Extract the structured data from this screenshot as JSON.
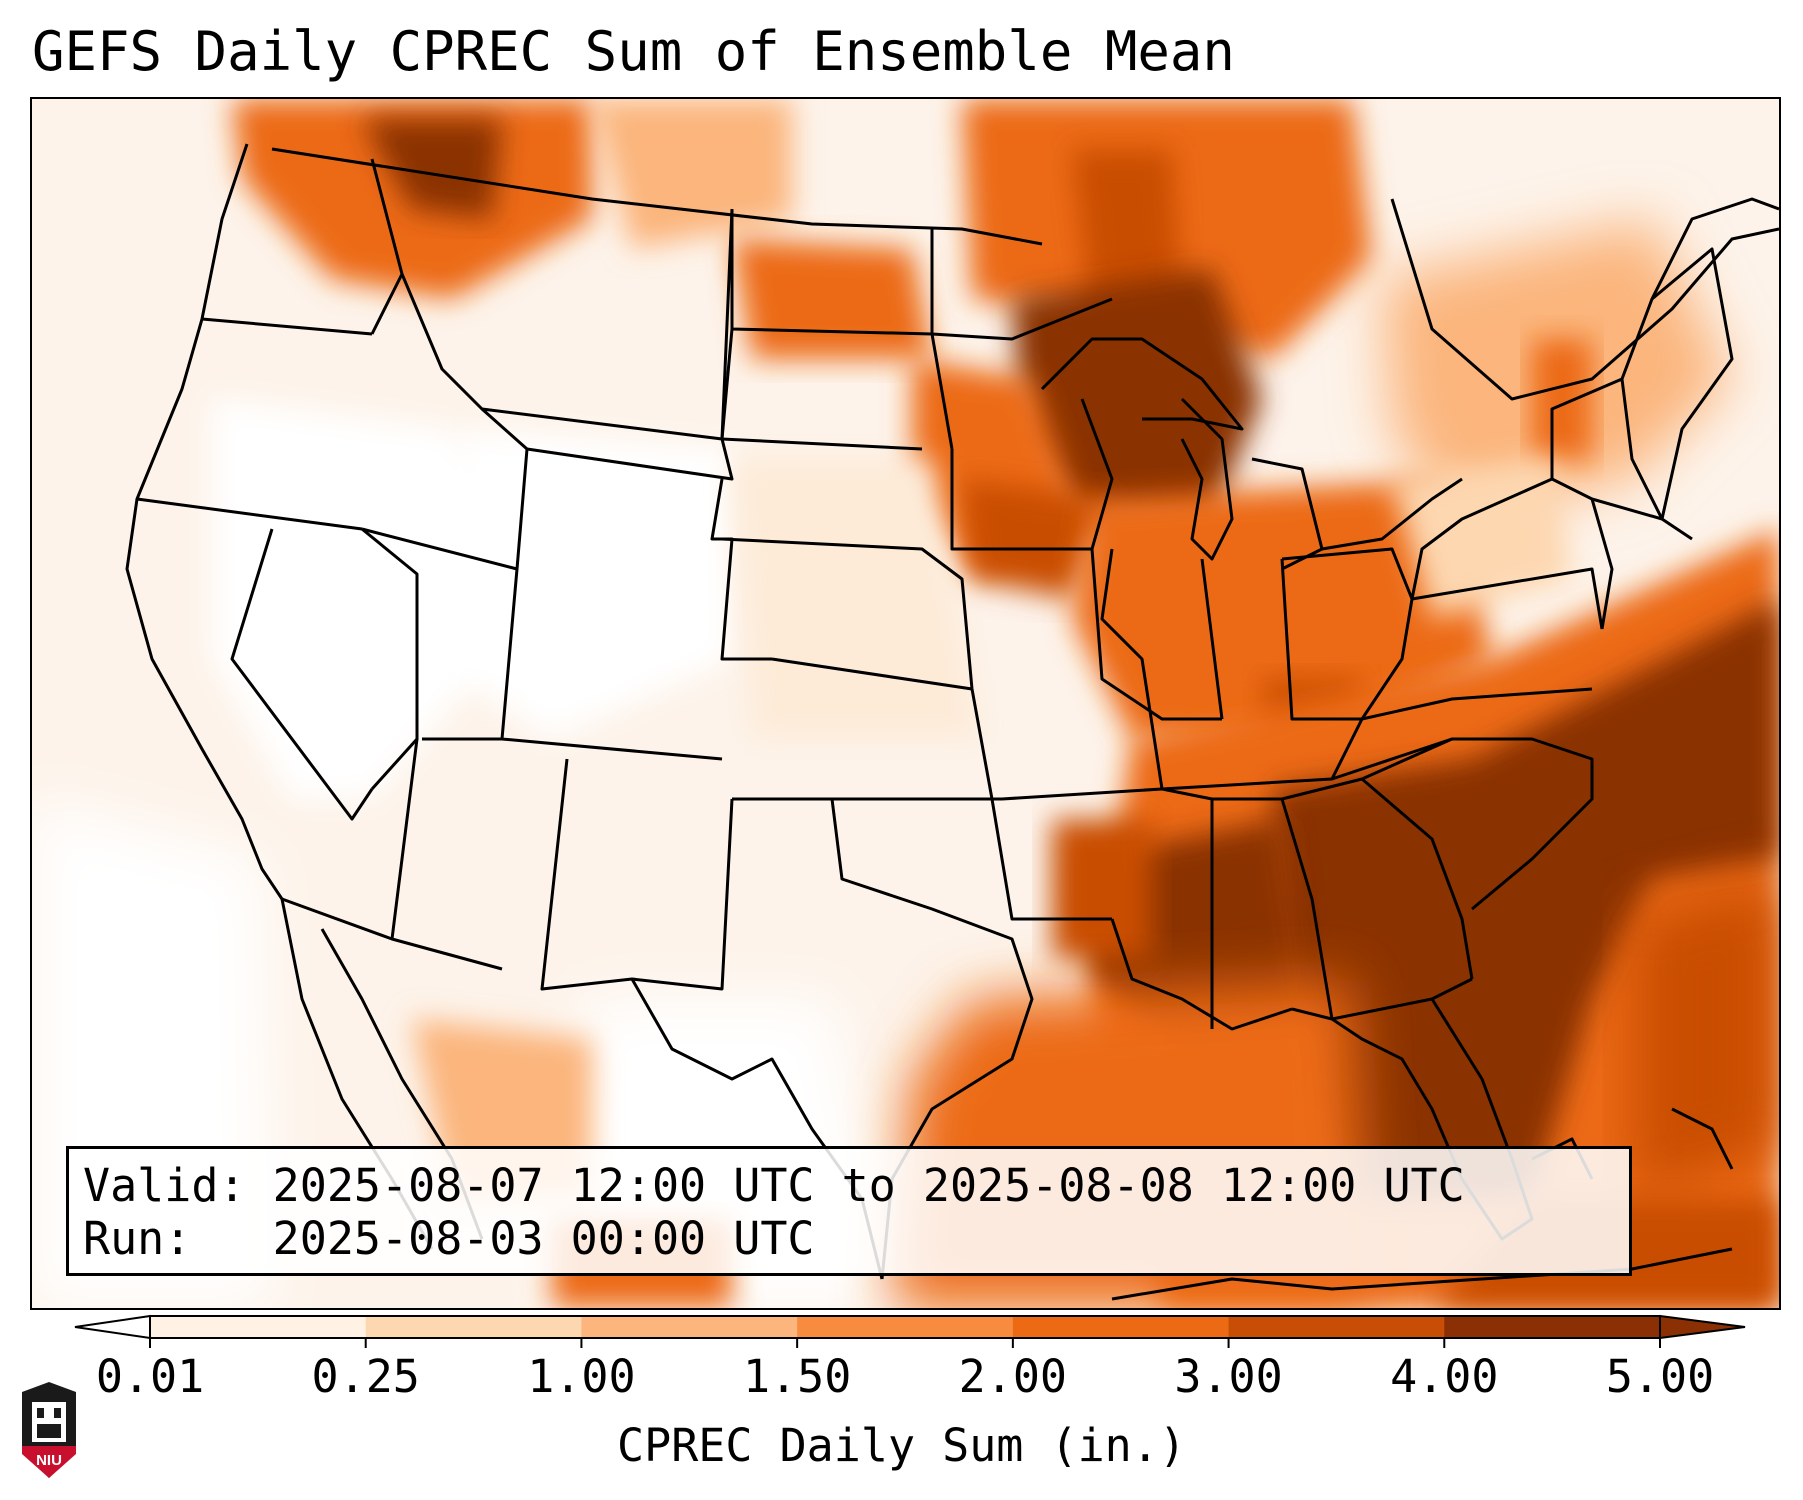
{
  "title": "GEFS Daily CPREC Sum of Ensemble Mean",
  "info": {
    "valid_label": "Valid:",
    "valid_value": "2025-08-07 12:00 UTC to 2025-08-08 12:00 UTC",
    "run_label": "Run:",
    "run_value": "2025-08-03 00:00 UTC"
  },
  "colorbar": {
    "label": "CPREC Daily Sum (in.)",
    "ticks": [
      "0.01",
      "0.25",
      "1.00",
      "1.50",
      "2.00",
      "3.00",
      "4.00",
      "5.00"
    ],
    "colors": [
      "#fff1e3",
      "#fdd7b0",
      "#fbb57d",
      "#f78c3f",
      "#ec6a13",
      "#c94e05",
      "#8a3004"
    ],
    "extend": "both"
  },
  "logo": {
    "text": "NIU",
    "name": "niu-logo"
  }
}
